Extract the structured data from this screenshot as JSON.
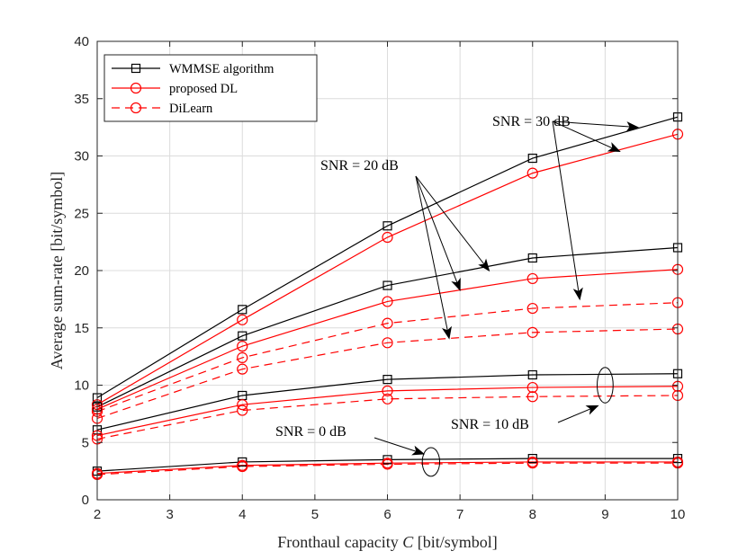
{
  "chart_data": {
    "type": "line",
    "xlabel_prefix": "Fronthaul capacity ",
    "xlabel_var": "C",
    "xlabel_suffix": " [bit/symbol]",
    "ylabel": "Average sum-rate [bit/symbol]",
    "xlim": [
      2,
      10
    ],
    "ylim": [
      0,
      40
    ],
    "xticks": [
      2,
      3,
      4,
      5,
      6,
      7,
      8,
      9,
      10
    ],
    "yticks": [
      0,
      5,
      10,
      15,
      20,
      25,
      30,
      35,
      40
    ],
    "grid": true,
    "legend": {
      "placement": "top-left",
      "entries": [
        {
          "label": "WMMSE algorithm",
          "color": "#000000",
          "marker": "square",
          "dash": "solid"
        },
        {
          "label": "proposed DL",
          "color": "#ff0000",
          "marker": "circle",
          "dash": "solid"
        },
        {
          "label": "DiLearn",
          "color": "#ff0000",
          "marker": "circle",
          "dash": "dashed"
        }
      ]
    },
    "x": [
      2,
      4,
      6,
      8,
      10
    ],
    "series": [
      {
        "name": "WMMSE algorithm, SNR = 30 dB",
        "style": 0,
        "values": [
          8.9,
          16.6,
          23.9,
          29.8,
          33.4
        ]
      },
      {
        "name": "proposed DL, SNR = 30 dB",
        "style": 1,
        "values": [
          8.3,
          15.7,
          22.9,
          28.5,
          31.9
        ]
      },
      {
        "name": "DiLearn, SNR = 30 dB",
        "style": 2,
        "values": [
          7.7,
          12.4,
          15.4,
          16.7,
          17.2
        ]
      },
      {
        "name": "WMMSE algorithm, SNR = 20 dB",
        "style": 0,
        "values": [
          8.1,
          14.3,
          18.7,
          21.1,
          22.0
        ]
      },
      {
        "name": "proposed DL, SNR = 20 dB",
        "style": 1,
        "values": [
          7.9,
          13.4,
          17.3,
          19.3,
          20.1
        ]
      },
      {
        "name": "DiLearn, SNR = 20 dB",
        "style": 2,
        "values": [
          7.1,
          11.4,
          13.7,
          14.6,
          14.9
        ]
      },
      {
        "name": "WMMSE algorithm, SNR = 10 dB",
        "style": 0,
        "values": [
          6.1,
          9.1,
          10.5,
          10.9,
          11.0
        ]
      },
      {
        "name": "proposed DL, SNR = 10 dB",
        "style": 1,
        "values": [
          5.6,
          8.3,
          9.5,
          9.8,
          9.9
        ]
      },
      {
        "name": "DiLearn, SNR = 10 dB",
        "style": 2,
        "values": [
          5.3,
          7.8,
          8.8,
          9.0,
          9.1
        ]
      },
      {
        "name": "WMMSE algorithm, SNR = 0 dB",
        "style": 0,
        "values": [
          2.5,
          3.3,
          3.5,
          3.6,
          3.6
        ]
      },
      {
        "name": "proposed DL, SNR = 0 dB",
        "style": 1,
        "values": [
          2.3,
          3.0,
          3.2,
          3.3,
          3.3
        ]
      },
      {
        "name": "DiLearn, SNR = 0 dB",
        "style": 2,
        "values": [
          2.2,
          2.9,
          3.1,
          3.2,
          3.2
        ]
      }
    ],
    "annotations": [
      {
        "text": "SNR = 30 dB",
        "targets": [
          [
            9.45,
            32.5
          ],
          [
            9.2,
            30.4
          ],
          [
            8.65,
            17.5
          ]
        ]
      },
      {
        "text": "SNR = 20 dB",
        "targets": [
          [
            7.4,
            20.0
          ],
          [
            7.0,
            18.3
          ],
          [
            6.85,
            14.1
          ]
        ]
      },
      {
        "text": "SNR = 10 dB",
        "targets": [
          [
            8.9,
            8.2
          ]
        ]
      },
      {
        "text": "SNR = 0 dB",
        "targets": [
          [
            6.5,
            4.0
          ]
        ]
      }
    ],
    "ellipses": [
      {
        "cx": 9.0,
        "cy": 10.0,
        "rx": 0.11,
        "ry": 1.55
      },
      {
        "cx": 6.6,
        "cy": 3.3,
        "rx": 0.12,
        "ry": 1.25
      }
    ]
  }
}
